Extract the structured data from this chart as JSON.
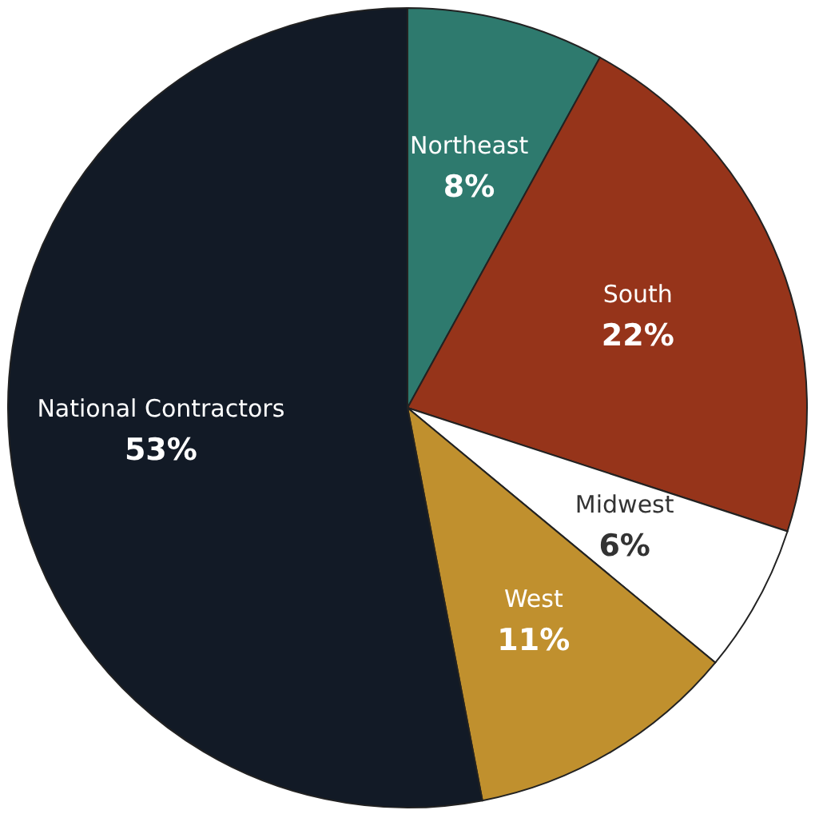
{
  "chart_data": {
    "type": "pie",
    "categories": [
      "Northeast",
      "South",
      "Midwest",
      "West",
      "National Contractors"
    ],
    "values": [
      8,
      22,
      6,
      11,
      53
    ],
    "value_labels": [
      "8%",
      "22%",
      "6%",
      "11%",
      "53%"
    ],
    "colors": [
      "#2e7a6e",
      "#96341a",
      "#ffffff",
      "#c0902e",
      "#121a26"
    ],
    "legend": false
  }
}
